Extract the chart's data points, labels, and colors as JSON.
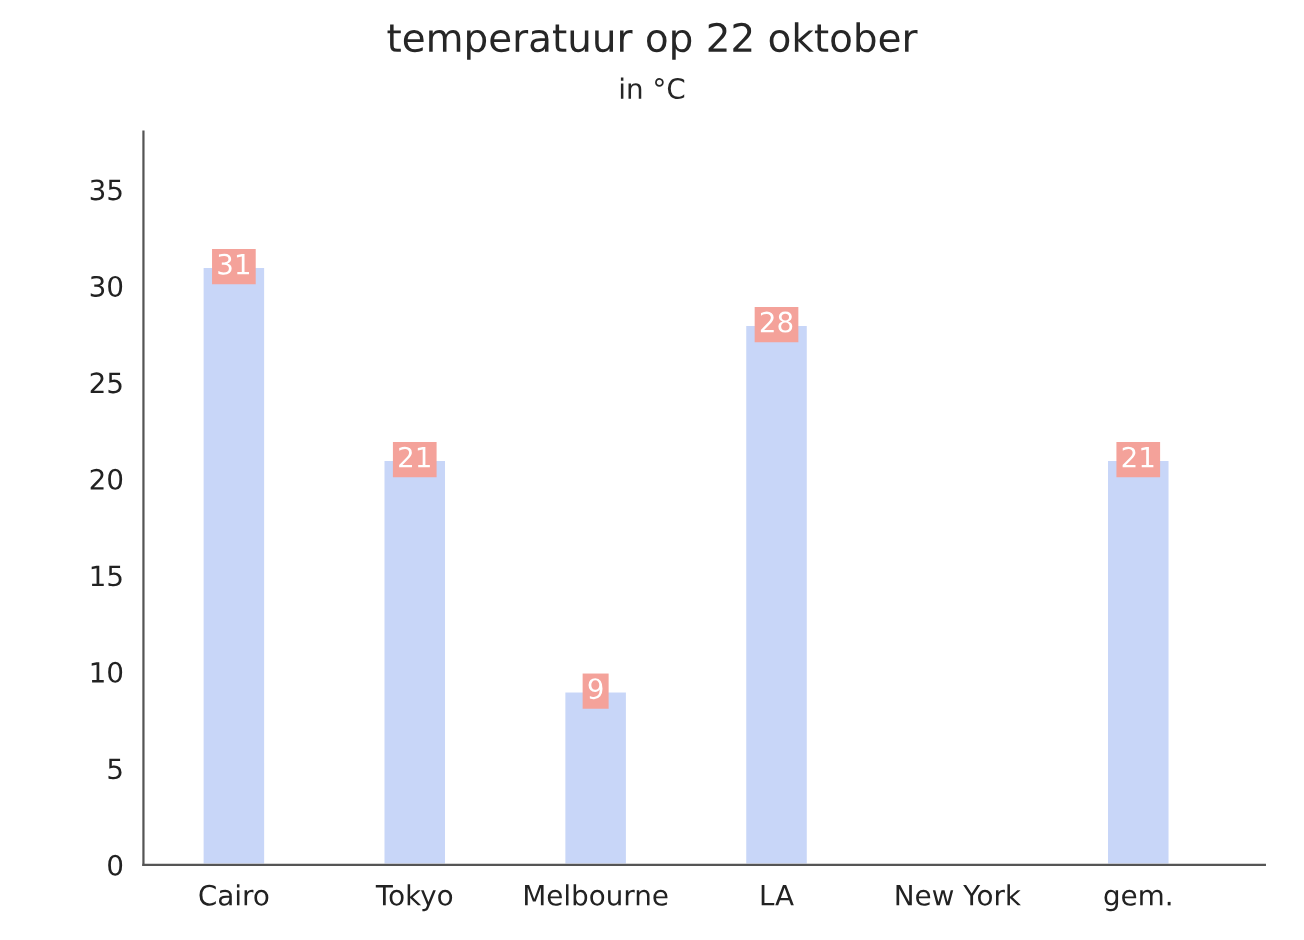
{
  "chart_data": {
    "type": "bar",
    "title": "temperatuur op 22 oktober",
    "subtitle": "in °C",
    "categories": [
      "Cairo",
      "Tokyo",
      "Melbourne",
      "LA",
      "New York",
      "gem."
    ],
    "values": [
      31,
      21,
      9,
      28,
      null,
      21
    ],
    "color": "#c8d6f8",
    "ylim": [
      0,
      38
    ],
    "yticks": [
      0,
      5,
      10,
      15,
      20,
      25,
      30,
      35
    ],
    "grid": false,
    "data_labels": true
  }
}
